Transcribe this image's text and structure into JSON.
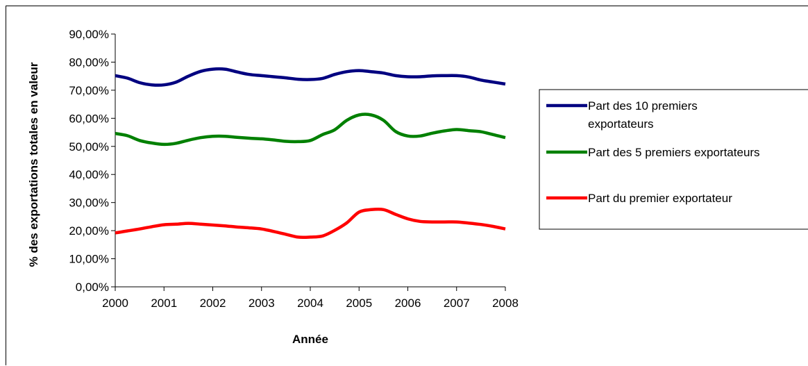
{
  "chart_data": {
    "type": "line",
    "title": "",
    "xlabel": "Année",
    "ylabel": "% des exportations totales en valeur",
    "x": [
      2000,
      2000.25,
      2000.5,
      2000.75,
      2001,
      2001.25,
      2001.5,
      2001.75,
      2002,
      2002.25,
      2002.5,
      2002.75,
      2003,
      2003.25,
      2003.5,
      2003.75,
      2004,
      2004.25,
      2004.5,
      2004.75,
      2005,
      2005.25,
      2005.5,
      2005.75,
      2006,
      2006.25,
      2006.5,
      2006.75,
      2007,
      2007.25,
      2007.5,
      2007.75,
      2008
    ],
    "xlim": [
      2000,
      2008
    ],
    "xticks": [
      "2000",
      "2001",
      "2002",
      "2003",
      "2004",
      "2005",
      "2006",
      "2007",
      "2008"
    ],
    "ylim": [
      0,
      90
    ],
    "yticks": [
      "0,00%",
      "10,00%",
      "20,00%",
      "30,00%",
      "40,00%",
      "50,00%",
      "60,00%",
      "70,00%",
      "80,00%",
      "90,00%"
    ],
    "grid": false,
    "legend_position": "right",
    "series": [
      {
        "name": "Part des 10 premiers exportateurs",
        "color": "#000080",
        "values": [
          75.2,
          74.3,
          72.7,
          71.9,
          71.9,
          72.9,
          75.0,
          76.7,
          77.5,
          77.5,
          76.5,
          75.6,
          75.2,
          74.8,
          74.4,
          73.9,
          73.8,
          74.2,
          75.6,
          76.6,
          77.0,
          76.6,
          76.1,
          75.2,
          74.8,
          74.8,
          75.1,
          75.2,
          75.2,
          74.7,
          73.6,
          72.9,
          72.2
        ]
      },
      {
        "name": "Part des 5 premiers exportateurs",
        "color": "#008000",
        "values": [
          54.6,
          53.8,
          52.1,
          51.2,
          50.7,
          51.1,
          52.2,
          53.1,
          53.6,
          53.6,
          53.2,
          52.9,
          52.7,
          52.3,
          51.8,
          51.7,
          52.1,
          54.2,
          55.9,
          59.3,
          61.2,
          61.2,
          59.3,
          55.3,
          53.7,
          53.7,
          54.7,
          55.5,
          56.0,
          55.6,
          55.2,
          54.2,
          53.1
        ]
      },
      {
        "name": "Part du premier exportateur",
        "color": "#ff0000",
        "values": [
          19.2,
          19.9,
          20.6,
          21.4,
          22.1,
          22.3,
          22.6,
          22.3,
          22.0,
          21.7,
          21.3,
          21.0,
          20.6,
          19.7,
          18.7,
          17.7,
          17.7,
          18.1,
          20.1,
          22.8,
          26.6,
          27.5,
          27.5,
          25.8,
          24.2,
          23.3,
          23.1,
          23.1,
          23.1,
          22.7,
          22.2,
          21.5,
          20.6
        ]
      }
    ]
  }
}
